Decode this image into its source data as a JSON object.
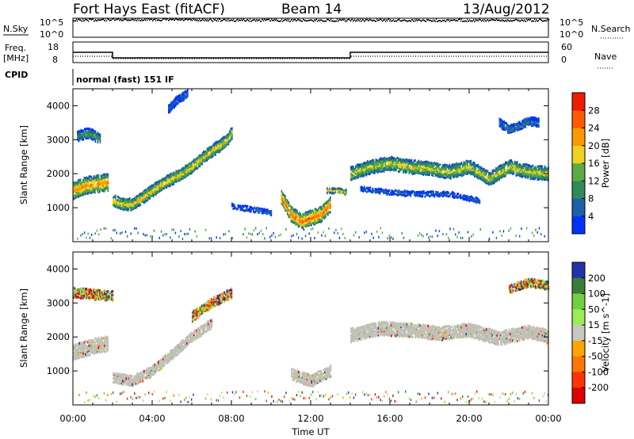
{
  "header": {
    "radar": "Fort Hays East (fitACF)",
    "beam": "Beam 14",
    "date": "13/Aug/2012"
  },
  "top_panels": {
    "nsky_label": "N.Sky",
    "nsky_ticks": [
      "10^5",
      "10^0"
    ],
    "nsearch_label": "N.Search",
    "nsearch_ticks": [
      "10^5",
      "10^0"
    ],
    "freq_label": "Freq.",
    "freq_unit": "[MHz]",
    "freq_ticks": [
      "18",
      "8"
    ],
    "nave_label": "Nave",
    "nave_ticks": [
      "60",
      "0"
    ],
    "cpid_label": "CPID",
    "cpid_text": "normal (fast) 151 IF"
  },
  "time_axis": {
    "label": "Time UT",
    "ticks": [
      "00:00",
      "04:00",
      "08:00",
      "12:00",
      "16:00",
      "20:00",
      "00:00"
    ]
  },
  "colors": {
    "power_scale": [
      "#0033ff",
      "#1f5fa8",
      "#2e8b57",
      "#5aaa46",
      "#f0d020",
      "#ff9900",
      "#ff5a00",
      "#ee1c00"
    ],
    "velocity_scale": [
      "#2233aa",
      "#3a7d3a",
      "#6fcf40",
      "#99ee55",
      "#c8c8c0",
      "#ffa500",
      "#ff7700",
      "#ff3300",
      "#dd0000"
    ],
    "ground_scatter": "#c0c0b8"
  },
  "chart_data": [
    {
      "type": "line",
      "title": "",
      "xlabel": "",
      "ylabel": "N.Sky",
      "yscale": "log",
      "ylim": [
        1,
        100000
      ],
      "y_ticks": [
        "10^5",
        "10^0"
      ],
      "series": [
        {
          "name": "N.Sky",
          "description": "noise level, nearly flat near top of log range",
          "x": [
            "00:00",
            "02:00",
            "04:00",
            "08:00",
            "12:00",
            "16:00",
            "20:00",
            "24:00"
          ],
          "y": [
            40000,
            60000,
            60000,
            45000,
            40000,
            40000,
            40000,
            40000
          ]
        }
      ]
    },
    {
      "type": "line",
      "title": "",
      "ylabel": "Freq. [MHz]",
      "ylim": [
        8,
        18
      ],
      "y_ticks": [
        "18",
        "8"
      ],
      "y2label": "Nave",
      "y2lim": [
        0,
        60
      ],
      "series": [
        {
          "name": "Freq.",
          "x": [
            "00:00",
            "02:00",
            "02:00",
            "14:00",
            "14:00",
            "24:00"
          ],
          "y": [
            13.0,
            13.0,
            10.3,
            10.3,
            13.0,
            13.0
          ]
        }
      ]
    },
    {
      "type": "heatmap",
      "title": "",
      "xlabel": "Time UT",
      "ylabel": "Slant Range [km]",
      "xlim": [
        "00:00",
        "24:00"
      ],
      "x_ticks": [
        "00:00",
        "04:00",
        "08:00",
        "12:00",
        "16:00",
        "20:00",
        "00:00"
      ],
      "ylim": [
        0,
        4500
      ],
      "y_ticks": [
        1000,
        2000,
        3000,
        4000
      ],
      "colorbar_label": "Power [dB]",
      "colorbar_ticks": [
        4,
        8,
        12,
        16,
        20,
        24,
        28
      ],
      "colorbar_range": [
        0,
        32
      ],
      "bands": [
        {
          "t": [
            0.0,
            0.6,
            1.2,
            1.8
          ],
          "range": [
            1500,
            1650,
            1700,
            1750
          ],
          "width": 500,
          "power": 24
        },
        {
          "t": [
            2.0,
            2.5,
            3.0,
            3.5,
            4.0,
            4.5,
            5.0,
            5.5,
            6.0,
            6.6,
            7.2,
            7.8,
            8.0
          ],
          "range": [
            1200,
            1100,
            1100,
            1300,
            1500,
            1700,
            1850,
            2000,
            2200,
            2500,
            2750,
            3000,
            3200
          ],
          "width": 350,
          "power": 20
        },
        {
          "t": [
            0.2,
            0.8,
            1.4
          ],
          "range": [
            3100,
            3200,
            3000
          ],
          "width": 300,
          "power": 12
        },
        {
          "t": [
            10.5,
            11.0,
            11.5,
            12.0,
            12.5,
            13.0
          ],
          "range": [
            1300,
            800,
            600,
            700,
            800,
            1100
          ],
          "width": 450,
          "power": 26
        },
        {
          "t": [
            12.8,
            13.3,
            13.8
          ],
          "range": [
            1500,
            1500,
            1450
          ],
          "width": 150,
          "power": 20
        },
        {
          "t": [
            14.0,
            15.0,
            16.0,
            17.0,
            18.0,
            19.0,
            20.0,
            21.0,
            22.0,
            23.0,
            24.0
          ],
          "range": [
            2000,
            2200,
            2300,
            2200,
            2150,
            2050,
            2200,
            1850,
            2200,
            2050,
            2000
          ],
          "width": 400,
          "power": 18
        },
        {
          "t": [
            14.5,
            16.0,
            17.5,
            19.0,
            20.5
          ],
          "range": [
            1550,
            1450,
            1400,
            1400,
            1200
          ],
          "width": 150,
          "power": 6
        },
        {
          "t": [
            8.0,
            9.0,
            10.0
          ],
          "range": [
            1050,
            950,
            850
          ],
          "width": 150,
          "power": 6
        },
        {
          "t": [
            21.5,
            22.0,
            22.5,
            23.0,
            23.5
          ],
          "range": [
            3500,
            3300,
            3400,
            3550,
            3500
          ],
          "width": 250,
          "power": 8
        },
        {
          "t": [
            4.8,
            5.3,
            5.8
          ],
          "range": [
            3900,
            4200,
            4350
          ],
          "width": 250,
          "power": 6
        }
      ]
    },
    {
      "type": "heatmap",
      "title": "",
      "xlabel": "Time UT",
      "ylabel": "Slant Range [km]",
      "xlim": [
        "00:00",
        "24:00"
      ],
      "x_ticks": [
        "00:00",
        "04:00",
        "08:00",
        "12:00",
        "16:00",
        "20:00",
        "00:00"
      ],
      "ylim": [
        0,
        4500
      ],
      "y_ticks": [
        1000,
        2000,
        3000,
        4000
      ],
      "colorbar_label": "Velocity [m s^-1]",
      "colorbar_ticks": [
        200,
        100,
        50,
        15,
        -15,
        -50,
        -100,
        -200
      ],
      "bands": [
        {
          "t": [
            0.0,
            0.6,
            1.2,
            1.8
          ],
          "range": [
            1550,
            1650,
            1750,
            1800
          ],
          "width": 450,
          "kind": "ground"
        },
        {
          "t": [
            2.0,
            3.0,
            4.0,
            5.0,
            6.0,
            7.0
          ],
          "range": [
            800,
            700,
            1000,
            1500,
            2000,
            2400
          ],
          "width": 300,
          "kind": "ground"
        },
        {
          "t": [
            11.0,
            12.0,
            13.0
          ],
          "range": [
            900,
            700,
            1000
          ],
          "width": 350,
          "kind": "ground"
        },
        {
          "t": [
            14.0,
            15.5,
            17.0,
            18.5,
            20.0,
            21.5,
            23.0,
            24.0
          ],
          "range": [
            2050,
            2250,
            2200,
            2100,
            2200,
            1950,
            2150,
            2000
          ],
          "width": 400,
          "kind": "ground"
        },
        {
          "t": [
            0.0,
            1.0,
            2.0
          ],
          "range": [
            3300,
            3250,
            3200
          ],
          "width": 300,
          "kind": "mixed"
        },
        {
          "t": [
            6.0,
            7.0,
            8.0
          ],
          "range": [
            2600,
            3000,
            3300
          ],
          "width": 300,
          "kind": "mixed"
        },
        {
          "t": [
            22.0,
            23.0,
            24.0
          ],
          "range": [
            3400,
            3600,
            3500
          ],
          "width": 250,
          "kind": "mixed"
        }
      ]
    }
  ]
}
